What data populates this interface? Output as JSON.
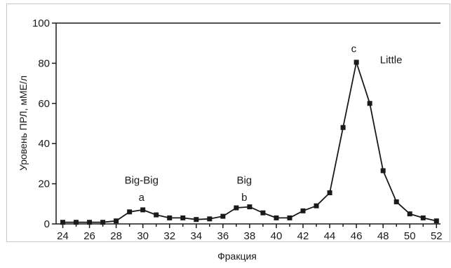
{
  "colors": {
    "series": "#1a1a1a",
    "axes": "#1a1a1a",
    "frame": "#c8c8c8"
  },
  "chart_data": {
    "type": "line",
    "title": "",
    "xlabel": "Фракция",
    "ylabel": "Уровень ПРЛ, мМЕ/л",
    "xlim": [
      23.5,
      52.3
    ],
    "ylim": [
      0,
      100
    ],
    "grid": false,
    "legend": "none",
    "x_ticks": [
      24,
      26,
      28,
      30,
      32,
      34,
      36,
      38,
      40,
      42,
      44,
      46,
      48,
      50,
      52
    ],
    "y_ticks": [
      0,
      20,
      40,
      60,
      80,
      100
    ],
    "series": [
      {
        "marker": "square",
        "x": [
          24,
          25,
          26,
          27,
          28,
          29,
          30,
          31,
          32,
          33,
          34,
          35,
          36,
          37,
          38,
          39,
          40,
          41,
          42,
          43,
          44,
          45,
          46,
          47,
          48,
          49,
          50,
          51,
          52
        ],
        "y": [
          0.8,
          0.8,
          0.8,
          0.8,
          1.5,
          6,
          7,
          4.5,
          3,
          3,
          2.2,
          2.5,
          3.8,
          8,
          8.5,
          5.5,
          3,
          3,
          6.5,
          9,
          15.5,
          48,
          80.5,
          60,
          26.5,
          11,
          5,
          3,
          1.5
        ]
      }
    ],
    "annotations": [
      {
        "text": "Big-Big",
        "x": 29.9,
        "y": 20
      },
      {
        "text": "a",
        "x": 29.9,
        "y": 11.5
      },
      {
        "text": "Big",
        "x": 37.6,
        "y": 20
      },
      {
        "text": "b",
        "x": 37.6,
        "y": 11.5
      },
      {
        "text": "c",
        "x": 45.8,
        "y": 85.5
      },
      {
        "text": "Little",
        "x": 48.6,
        "y": 80
      }
    ]
  }
}
